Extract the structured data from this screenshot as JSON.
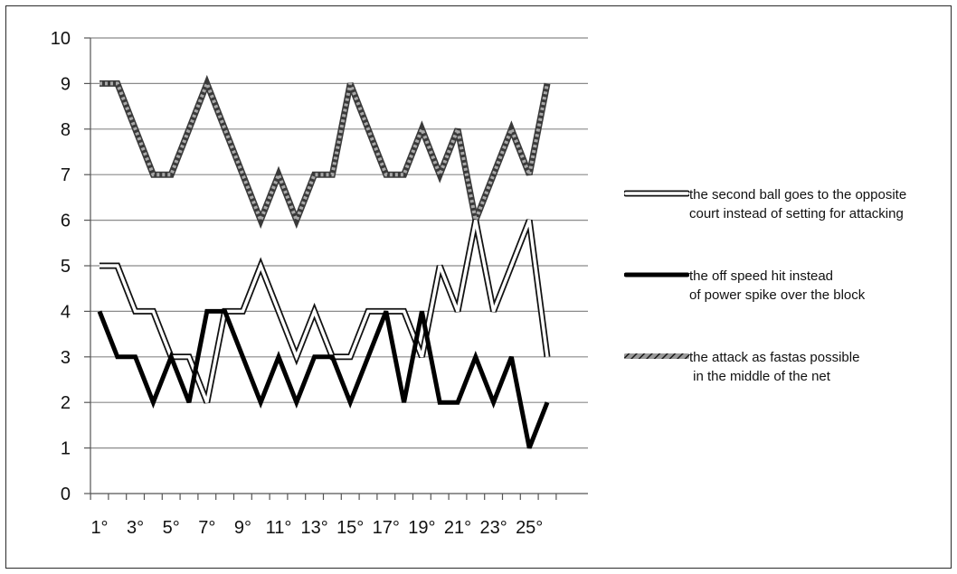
{
  "chart_data": {
    "type": "line",
    "title": "",
    "xlabel": "",
    "ylabel": "",
    "ylim": [
      0,
      10
    ],
    "yticks": [
      0,
      1,
      2,
      3,
      4,
      5,
      6,
      7,
      8,
      9,
      10
    ],
    "grid": "horizontal",
    "legend_position": "right",
    "x": [
      1,
      2,
      3,
      4,
      5,
      6,
      7,
      8,
      9,
      10,
      11,
      12,
      13,
      14,
      15,
      16,
      17,
      18,
      19,
      20,
      21,
      22,
      23,
      24,
      25,
      26
    ],
    "x_tick_labels": [
      "1°",
      "3°",
      "5°",
      "7°",
      "9°",
      "11°",
      "13°",
      "15°",
      "17°",
      "19°",
      "21°",
      "23°",
      "25°"
    ],
    "series": [
      {
        "name_lines": [
          "the second ball goes to the opposite",
          "court instead of setting for attacking"
        ],
        "style": "double-outline",
        "color": "#111111",
        "values": [
          5,
          5,
          4,
          4,
          3,
          3,
          2,
          4,
          4,
          5,
          4,
          3,
          4,
          3,
          3,
          4,
          4,
          4,
          3,
          5,
          4,
          6,
          4,
          5,
          6,
          3
        ]
      },
      {
        "name_lines": [
          "the off speed hit instead",
          "of power spike over the block"
        ],
        "style": "solid-thick",
        "color": "#000000",
        "values": [
          4,
          3,
          3,
          2,
          3,
          2,
          4,
          4,
          3,
          2,
          3,
          2,
          3,
          3,
          2,
          3,
          4,
          2,
          4,
          2,
          2,
          3,
          2,
          3,
          1,
          2
        ]
      },
      {
        "name_lines": [
          "the attack as fastas possible",
          " in the middle of the net"
        ],
        "style": "hatched",
        "color": "#6e6e6e",
        "values": [
          9,
          9,
          8,
          7,
          7,
          8,
          9,
          8,
          7,
          6,
          7,
          6,
          7,
          7,
          9,
          8,
          7,
          7,
          8,
          7,
          8,
          6,
          7,
          8,
          7,
          9
        ]
      }
    ]
  }
}
